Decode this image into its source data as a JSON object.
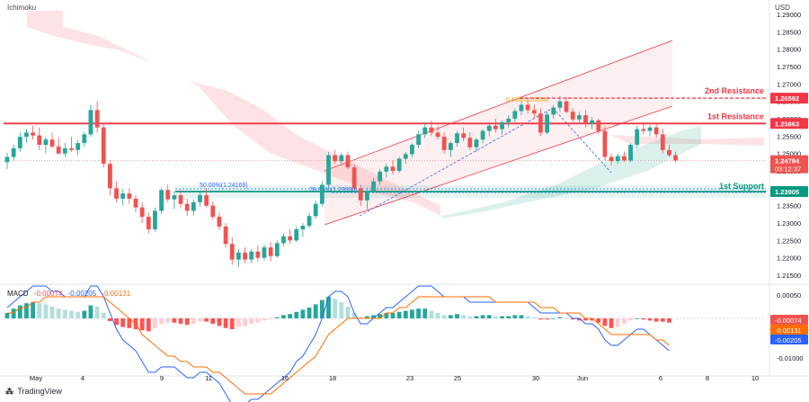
{
  "indicator_label": "Ichimoku",
  "currency": "USD",
  "branding": "TradingView",
  "colors": {
    "up": "#26a69a",
    "down": "#ef5350",
    "resistance": "#f23645",
    "support": "#089981",
    "fib": "#2962ff",
    "fib_top": "#f7a600",
    "channel": "#f23645",
    "macd_line": "#2962ff",
    "signal_line": "#ff6d00"
  },
  "price_axis": {
    "ticks": [
      "1.29000",
      "1.28500",
      "1.28000",
      "1.27500",
      "1.27000",
      "1.26500",
      "1.26000",
      "1.25500",
      "1.25000",
      "1.24500",
      "1.24000",
      "1.23500",
      "1.23000",
      "1.22500",
      "1.22000",
      "1.21500"
    ]
  },
  "time_axis": {
    "labels": [
      "May",
      "4",
      "9",
      "11",
      "16",
      "18",
      "23",
      "25",
      "30",
      "Jun",
      "6",
      "8",
      "10"
    ]
  },
  "levels": {
    "second_resistance": {
      "label": "2nd Resistance",
      "value": "1.26592"
    },
    "first_resistance": {
      "label": "1st Resistance",
      "value": "1.25863"
    },
    "first_support": {
      "label": "1st Support",
      "value": "1.23905"
    },
    "current_price": {
      "value": "1.24794",
      "countdown": "03:12:37"
    }
  },
  "fib_labels": {
    "fib_50": "50.00%(1.24169)",
    "fib_786": "78.60%(1.23930)",
    "fib_618": "0.618(1.26634)"
  },
  "macd": {
    "label": "MACD",
    "values": [
      "-0.00074",
      "-0.00205",
      "-0.00131"
    ],
    "axis_ticks": [
      "0.00050",
      "0.00000",
      "-0.00050",
      "-0.01000"
    ],
    "badges": [
      "-0.00074",
      "-0.00131",
      "-0.00205"
    ]
  },
  "chart_data": {
    "type": "candlestick",
    "title": "",
    "ylabel": "USD",
    "ylim": [
      1.215,
      1.29
    ],
    "candles": [
      [
        1.2475,
        1.2502,
        1.2455,
        1.249
      ],
      [
        1.249,
        1.2525,
        1.248,
        1.2515
      ],
      [
        1.2515,
        1.256,
        1.2505,
        1.2548
      ],
      [
        1.2548,
        1.257,
        1.253,
        1.256
      ],
      [
        1.256,
        1.258,
        1.254,
        1.2552
      ],
      [
        1.2552,
        1.2575,
        1.251,
        1.2525
      ],
      [
        1.2525,
        1.2548,
        1.25,
        1.254
      ],
      [
        1.254,
        1.256,
        1.2515,
        1.252
      ],
      [
        1.252,
        1.2545,
        1.2495,
        1.25
      ],
      [
        1.25,
        1.253,
        1.249,
        1.2515
      ],
      [
        1.2515,
        1.2548,
        1.2505,
        1.251
      ],
      [
        1.251,
        1.2538,
        1.2495,
        1.253
      ],
      [
        1.253,
        1.2562,
        1.252,
        1.2555
      ],
      [
        1.2555,
        1.264,
        1.2548,
        1.2625
      ],
      [
        1.2625,
        1.265,
        1.256,
        1.2575
      ],
      [
        1.2575,
        1.2585,
        1.246,
        1.247
      ],
      [
        1.247,
        1.248,
        1.238,
        1.24
      ],
      [
        1.24,
        1.242,
        1.236,
        1.237
      ],
      [
        1.237,
        1.2398,
        1.235,
        1.2385
      ],
      [
        1.2385,
        1.24,
        1.2355,
        1.237
      ],
      [
        1.237,
        1.238,
        1.233,
        1.2345
      ],
      [
        1.2345,
        1.236,
        1.23,
        1.2318
      ],
      [
        1.2318,
        1.233,
        1.227,
        1.2282
      ],
      [
        1.2282,
        1.2345,
        1.2275,
        1.2335
      ],
      [
        1.2335,
        1.2402,
        1.2325,
        1.2395
      ],
      [
        1.2395,
        1.241,
        1.236,
        1.2368
      ],
      [
        1.2368,
        1.2392,
        1.234,
        1.238
      ],
      [
        1.238,
        1.2395,
        1.2345,
        1.2355
      ],
      [
        1.2355,
        1.237,
        1.232,
        1.2335
      ],
      [
        1.2335,
        1.2368,
        1.2322,
        1.236
      ],
      [
        1.236,
        1.2388,
        1.2348,
        1.238
      ],
      [
        1.238,
        1.24,
        1.2345,
        1.235
      ],
      [
        1.235,
        1.2362,
        1.231,
        1.2318
      ],
      [
        1.2318,
        1.233,
        1.228,
        1.229
      ],
      [
        1.229,
        1.23,
        1.223,
        1.224
      ],
      [
        1.224,
        1.226,
        1.218,
        1.2195
      ],
      [
        1.2195,
        1.2225,
        1.2175,
        1.2215
      ],
      [
        1.2215,
        1.223,
        1.2185,
        1.2195
      ],
      [
        1.2195,
        1.2225,
        1.2185,
        1.2218
      ],
      [
        1.2218,
        1.2235,
        1.219,
        1.22
      ],
      [
        1.22,
        1.2238,
        1.2192,
        1.223
      ],
      [
        1.223,
        1.2245,
        1.219,
        1.2205
      ],
      [
        1.2205,
        1.225,
        1.22,
        1.2242
      ],
      [
        1.2242,
        1.227,
        1.2232,
        1.2262
      ],
      [
        1.2262,
        1.2282,
        1.224,
        1.225
      ],
      [
        1.225,
        1.229,
        1.2245,
        1.2282
      ],
      [
        1.2282,
        1.23,
        1.226,
        1.2292
      ],
      [
        1.2292,
        1.233,
        1.2285,
        1.232
      ],
      [
        1.232,
        1.2365,
        1.2312,
        1.2355
      ],
      [
        1.2355,
        1.242,
        1.2348,
        1.241
      ],
      [
        1.241,
        1.2505,
        1.24,
        1.2495
      ],
      [
        1.2495,
        1.251,
        1.247,
        1.2478
      ],
      [
        1.2478,
        1.2502,
        1.2465,
        1.2495
      ],
      [
        1.2495,
        1.2505,
        1.2455,
        1.246
      ],
      [
        1.246,
        1.247,
        1.2395,
        1.24
      ],
      [
        1.24,
        1.241,
        1.235,
        1.2365
      ],
      [
        1.2365,
        1.24,
        1.234,
        1.2392
      ],
      [
        1.2392,
        1.243,
        1.2385,
        1.242
      ],
      [
        1.242,
        1.2455,
        1.241,
        1.2448
      ],
      [
        1.2448,
        1.247,
        1.243,
        1.2462
      ],
      [
        1.2462,
        1.248,
        1.244,
        1.245
      ],
      [
        1.245,
        1.249,
        1.2445,
        1.2485
      ],
      [
        1.2485,
        1.2505,
        1.247,
        1.2498
      ],
      [
        1.2498,
        1.253,
        1.249,
        1.2525
      ],
      [
        1.2525,
        1.2565,
        1.2515,
        1.2555
      ],
      [
        1.2555,
        1.259,
        1.2545,
        1.2575
      ],
      [
        1.2575,
        1.2595,
        1.255,
        1.256
      ],
      [
        1.256,
        1.258,
        1.254,
        1.2548
      ],
      [
        1.2548,
        1.256,
        1.25,
        1.251
      ],
      [
        1.251,
        1.2535,
        1.249,
        1.253
      ],
      [
        1.253,
        1.2565,
        1.252,
        1.2558
      ],
      [
        1.2558,
        1.2575,
        1.2535,
        1.2545
      ],
      [
        1.2545,
        1.256,
        1.251,
        1.2518
      ],
      [
        1.2518,
        1.2545,
        1.2505,
        1.254
      ],
      [
        1.254,
        1.257,
        1.253,
        1.2565
      ],
      [
        1.2565,
        1.259,
        1.255,
        1.258
      ],
      [
        1.258,
        1.26,
        1.256,
        1.257
      ],
      [
        1.257,
        1.2595,
        1.2555,
        1.259
      ],
      [
        1.259,
        1.261,
        1.2575,
        1.26
      ],
      [
        1.26,
        1.263,
        1.259,
        1.2622
      ],
      [
        1.2622,
        1.265,
        1.261,
        1.264
      ],
      [
        1.264,
        1.266,
        1.2615,
        1.2625
      ],
      [
        1.2625,
        1.264,
        1.26,
        1.2615
      ],
      [
        1.2615,
        1.263,
        1.255,
        1.256
      ],
      [
        1.256,
        1.262,
        1.2555,
        1.2612
      ],
      [
        1.2612,
        1.264,
        1.26,
        1.2632
      ],
      [
        1.2632,
        1.2665,
        1.262,
        1.265
      ],
      [
        1.265,
        1.2662,
        1.2615,
        1.262
      ],
      [
        1.262,
        1.263,
        1.259,
        1.2598
      ],
      [
        1.2598,
        1.262,
        1.2585,
        1.261
      ],
      [
        1.261,
        1.2625,
        1.2575,
        1.2585
      ],
      [
        1.2585,
        1.2605,
        1.257,
        1.2595
      ],
      [
        1.2595,
        1.26,
        1.2555,
        1.2565
      ],
      [
        1.2565,
        1.258,
        1.248,
        1.249
      ],
      [
        1.249,
        1.25,
        1.2465,
        1.2478
      ],
      [
        1.2478,
        1.25,
        1.247,
        1.2492
      ],
      [
        1.2492,
        1.2505,
        1.2475,
        1.248
      ],
      [
        1.248,
        1.253,
        1.2475,
        1.2525
      ],
      [
        1.2525,
        1.258,
        1.2515,
        1.257
      ],
      [
        1.257,
        1.259,
        1.2555,
        1.2565
      ],
      [
        1.2565,
        1.2582,
        1.255,
        1.2575
      ],
      [
        1.2575,
        1.2585,
        1.2545,
        1.2555
      ],
      [
        1.2555,
        1.257,
        1.25,
        1.251
      ],
      [
        1.251,
        1.2525,
        1.249,
        1.2495
      ],
      [
        1.2495,
        1.2505,
        1.2475,
        1.248
      ]
    ],
    "macd_histogram": [
      0.0001,
      0.00018,
      0.00024,
      0.00028,
      0.0003,
      0.00028,
      0.00026,
      0.00022,
      0.00018,
      0.00016,
      0.00014,
      0.00012,
      0.00014,
      0.00024,
      0.00022,
      0.0001,
      -5e-05,
      -0.00012,
      -0.00016,
      -0.00018,
      -0.0002,
      -0.00022,
      -0.00024,
      -0.00018,
      -0.0001,
      -8e-05,
      -8e-05,
      -0.0001,
      -0.00012,
      -0.0001,
      -6e-05,
      -6e-05,
      -0.0001,
      -0.00014,
      -0.00018,
      -0.0002,
      -0.00016,
      -0.00014,
      -0.0001,
      -8e-05,
      -4e-05,
      -2e-05,
      2e-05,
      6e-05,
      8e-05,
      0.00012,
      0.00016,
      0.0002,
      0.00026,
      0.00034,
      0.0004,
      0.00036,
      0.0003,
      0.00022,
      0.0001,
      2e-05,
      4e-05,
      6e-05,
      8e-05,
      0.0001,
      0.0001,
      0.00012,
      0.00014,
      0.00016,
      0.00018,
      0.00018,
      0.00014,
      0.0001,
      6e-05,
      6e-05,
      8e-05,
      6e-05,
      4e-05,
      4e-05,
      6e-05,
      6e-05,
      4e-05,
      4e-05,
      4e-05,
      6e-05,
      6e-05,
      4e-05,
      2e-05,
      -2e-05,
      -2e-05,
      0.0,
      2e-05,
      0.0,
      -2e-05,
      -4e-05,
      -4e-05,
      -4e-05,
      -8e-05,
      -0.00014,
      -0.00018,
      -0.00016,
      -0.0001,
      -4e-05,
      0.0,
      -2e-05,
      -4e-05,
      -6e-05,
      -6e-05,
      -8e-05
    ],
    "macd_line": [
      0.0002,
      0.0003,
      0.0004,
      0.0005,
      0.0006,
      0.0006,
      0.0006,
      0.0005,
      0.0005,
      0.0004,
      0.0004,
      0.0004,
      0.0004,
      0.0006,
      0.0006,
      0.0004,
      0.0001,
      -0.0002,
      -0.0004,
      -0.0005,
      -0.0006,
      -0.0008,
      -0.001,
      -0.001,
      -0.0009,
      -0.0009,
      -0.0009,
      -0.001,
      -0.0011,
      -0.0011,
      -0.001,
      -0.001,
      -0.0011,
      -0.0012,
      -0.0014,
      -0.0016,
      -0.0016,
      -0.0016,
      -0.0015,
      -0.0015,
      -0.0014,
      -0.0013,
      -0.0012,
      -0.0011,
      -0.001,
      -0.0008,
      -0.0007,
      -0.0005,
      -0.0003,
      0.0,
      0.0004,
      0.0005,
      0.0005,
      0.0004,
      0.0001,
      -0.0001,
      -0.0001,
      0.0,
      0.0001,
      0.0002,
      0.0002,
      0.0003,
      0.0004,
      0.0005,
      0.0006,
      0.0006,
      0.0006,
      0.0005,
      0.0004,
      0.0004,
      0.0004,
      0.0004,
      0.0003,
      0.0003,
      0.0003,
      0.0003,
      0.0003,
      0.0003,
      0.0003,
      0.0003,
      0.0003,
      0.0003,
      0.0002,
      0.0001,
      0.0001,
      0.0001,
      0.0001,
      0.0001,
      0.0,
      0.0,
      -0.0001,
      -0.0001,
      -0.0002,
      -0.0004,
      -0.0005,
      -0.0005,
      -0.0004,
      -0.0003,
      -0.0002,
      -0.0002,
      -0.0003,
      -0.0004,
      -0.0005,
      -0.0006
    ],
    "signal_line": [
      0.0001,
      0.0001,
      0.0002,
      0.0002,
      0.0003,
      0.0003,
      0.0004,
      0.0004,
      0.0004,
      0.0004,
      0.0004,
      0.0004,
      0.0004,
      0.0004,
      0.0004,
      0.0004,
      0.0003,
      0.0002,
      0.0001,
      0.0,
      -0.0001,
      -0.0003,
      -0.0004,
      -0.0005,
      -0.0006,
      -0.0007,
      -0.0007,
      -0.0008,
      -0.0008,
      -0.0009,
      -0.0009,
      -0.0009,
      -0.001,
      -0.001,
      -0.0011,
      -0.0012,
      -0.0013,
      -0.0014,
      -0.0014,
      -0.0014,
      -0.0014,
      -0.0014,
      -0.0013,
      -0.0012,
      -0.0011,
      -0.001,
      -0.0009,
      -0.0008,
      -0.0007,
      -0.0005,
      -0.0003,
      -0.0002,
      -0.0001,
      0.0,
      0.0,
      0.0,
      0.0,
      0.0,
      0.0,
      0.0001,
      0.0001,
      0.0002,
      0.0002,
      0.0003,
      0.0004,
      0.0004,
      0.0004,
      0.0004,
      0.0004,
      0.0004,
      0.0004,
      0.0004,
      0.0004,
      0.0004,
      0.0004,
      0.0004,
      0.0003,
      0.0003,
      0.0003,
      0.0003,
      0.0003,
      0.0003,
      0.0003,
      0.0002,
      0.0002,
      0.0002,
      0.0001,
      0.0001,
      0.0001,
      0.0001,
      0.0,
      0.0,
      -0.0001,
      -0.0002,
      -0.0003,
      -0.0003,
      -0.0003,
      -0.0003,
      -0.0003,
      -0.0003,
      -0.0003,
      -0.0004,
      -0.0004,
      -0.0005
    ]
  }
}
